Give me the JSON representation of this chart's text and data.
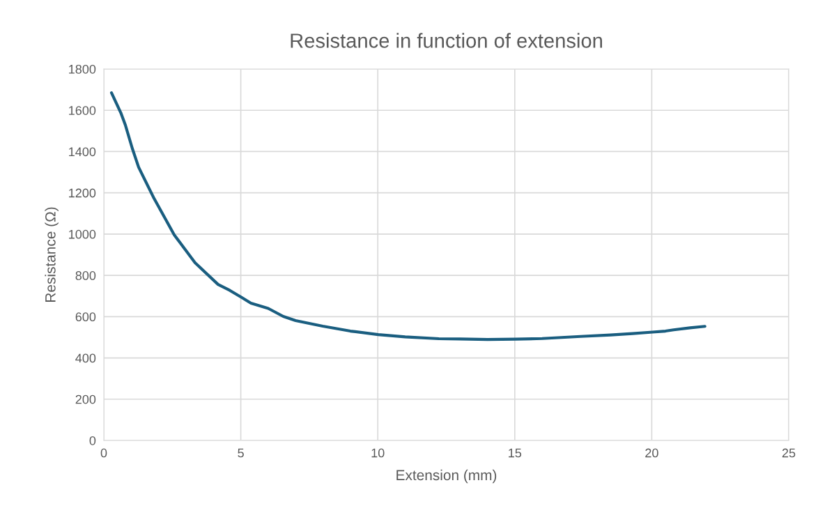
{
  "chart_data": {
    "type": "line",
    "title": "Resistance in function of extension",
    "xlabel": "Extension (mm)",
    "ylabel": "Resistance (Ω)",
    "x": [
      0.28,
      0.62,
      0.79,
      1.04,
      1.27,
      1.81,
      2.57,
      3.33,
      4.17,
      4.6,
      5.03,
      5.37,
      6.0,
      6.55,
      7.0,
      7.99,
      9.0,
      10.02,
      11.0,
      12.23,
      13.0,
      14.01,
      15.03,
      16.0,
      17.4,
      18.5,
      19.3,
      20.03,
      20.5,
      20.8,
      21.4,
      21.94
    ],
    "series": [
      {
        "color": "#1a5e80",
        "values": [
          1685,
          1588,
          1527,
          1415,
          1324,
          1179,
          996,
          861,
          756,
          727,
          693,
          665,
          640,
          601,
          581,
          554,
          530,
          513,
          502,
          493,
          492,
          489,
          491,
          494,
          504,
          511,
          518,
          525,
          530,
          536,
          546,
          553
        ]
      }
    ],
    "xlim": [
      0,
      25
    ],
    "xticks": [
      0,
      5,
      10,
      15,
      20,
      25
    ],
    "ylim": [
      0,
      1800
    ],
    "yticks": [
      0,
      200,
      400,
      600,
      800,
      1000,
      1200,
      1400,
      1600,
      1800
    ],
    "grid": true,
    "legend": false,
    "marker": "none",
    "line_style": "solid"
  }
}
